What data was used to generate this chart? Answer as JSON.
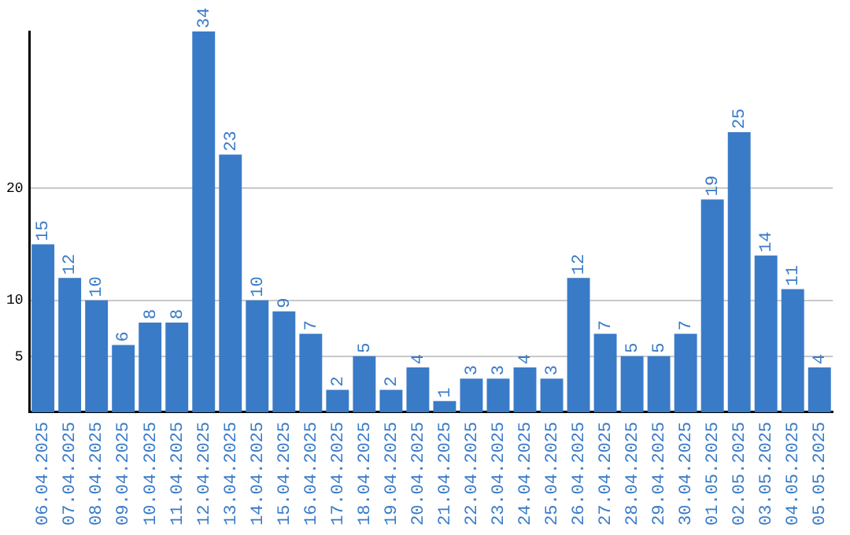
{
  "chart_data": {
    "type": "bar",
    "categories": [
      "06.04.2025",
      "07.04.2025",
      "08.04.2025",
      "09.04.2025",
      "10.04.2025",
      "11.04.2025",
      "12.04.2025",
      "13.04.2025",
      "14.04.2025",
      "15.04.2025",
      "16.04.2025",
      "17.04.2025",
      "18.04.2025",
      "19.04.2025",
      "20.04.2025",
      "21.04.2025",
      "22.04.2025",
      "23.04.2025",
      "24.04.2025",
      "25.04.2025",
      "26.04.2025",
      "27.04.2025",
      "28.04.2025",
      "29.04.2025",
      "30.04.2025",
      "01.05.2025",
      "02.05.2025",
      "03.05.2025",
      "04.05.2025",
      "05.05.2025"
    ],
    "values": [
      15,
      12,
      10,
      6,
      8,
      8,
      34,
      23,
      10,
      9,
      7,
      2,
      5,
      2,
      4,
      1,
      3,
      3,
      4,
      3,
      12,
      7,
      5,
      5,
      7,
      19,
      25,
      14,
      11,
      4
    ],
    "color": "#3a7bc8",
    "ylim": [
      0,
      34
    ],
    "yticks": [
      5,
      10,
      20
    ],
    "grid": "y",
    "data_labels": true
  }
}
